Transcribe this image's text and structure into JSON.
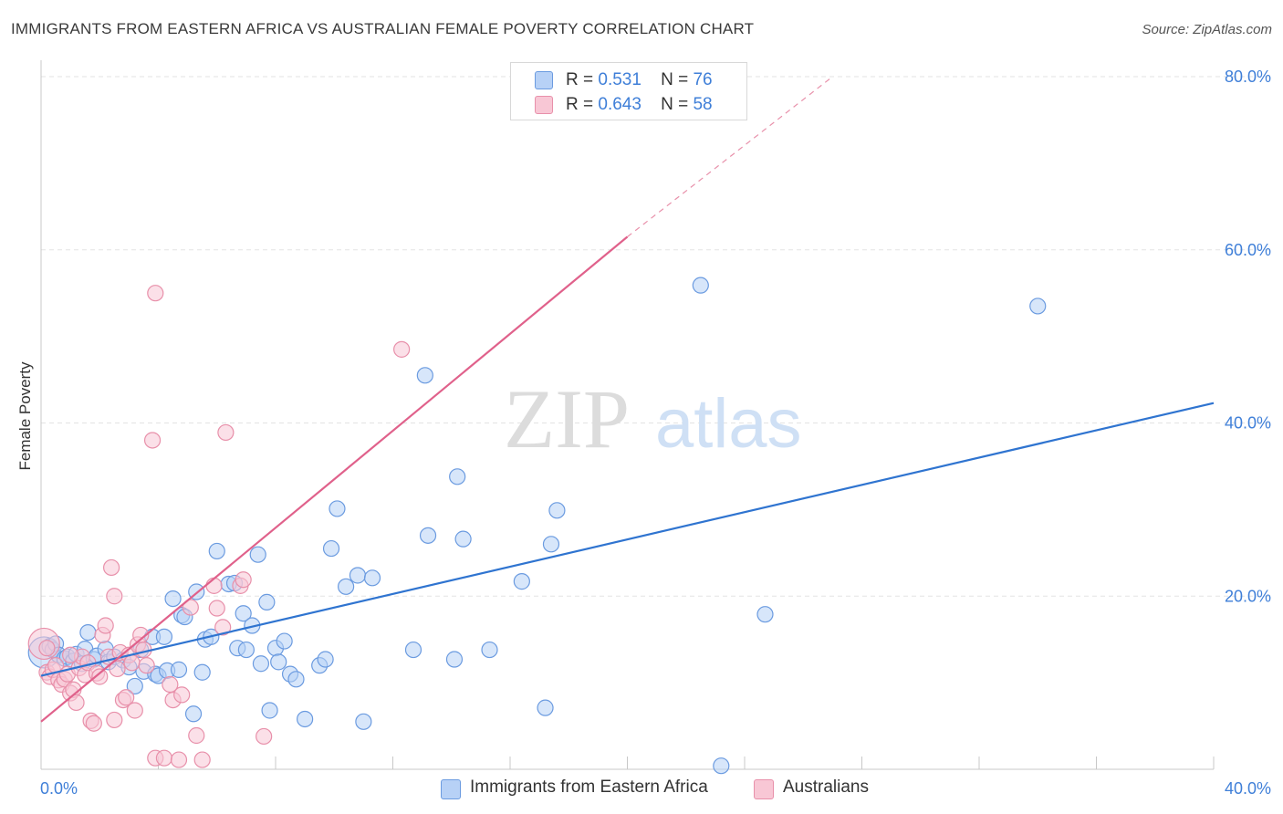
{
  "header": {
    "title": "IMMIGRANTS FROM EASTERN AFRICA VS AUSTRALIAN FEMALE POVERTY CORRELATION CHART",
    "source": "Source: ZipAtlas.com"
  },
  "watermark": {
    "zip": "ZIP",
    "atlas": "atlas"
  },
  "legend": {
    "rows": [
      {
        "r_label": "R =",
        "r_value": "0.531",
        "n_label": "N =",
        "n_value": "76"
      },
      {
        "r_label": "R =",
        "r_value": "0.643",
        "n_label": "N =",
        "n_value": "58"
      }
    ]
  },
  "bottom_legend": {
    "series1": "Immigrants from Eastern Africa",
    "series2": "Australians"
  },
  "colors": {
    "blue_fill": "#b7d1f6",
    "blue_stroke": "#6b9be0",
    "blue_line": "#2f74d0",
    "pink_fill": "#f8c7d5",
    "pink_stroke": "#e890aa",
    "pink_line": "#e0618b",
    "tick_text": "#3f7fd8",
    "grid": "#e3e3e3"
  },
  "chart_data": {
    "type": "scatter",
    "title": "IMMIGRANTS FROM EASTERN AFRICA VS AUSTRALIAN FEMALE POVERTY CORRELATION CHART",
    "xlabel": "",
    "ylabel": "Female Poverty",
    "xlim": [
      0,
      40
    ],
    "ylim": [
      0,
      80
    ],
    "x_tick_labels": [
      "0.0%",
      "40.0%"
    ],
    "y_tick_labels": [
      "20.0%",
      "40.0%",
      "60.0%",
      "80.0%"
    ],
    "y_ticks": [
      20,
      40,
      60,
      80
    ],
    "grid": true,
    "legend_position": "top-center",
    "series": [
      {
        "name": "Immigrants from Eastern Africa",
        "color": "#6b9be0",
        "r": "0.531",
        "n": "76",
        "trend": {
          "x": [
            0,
            40
          ],
          "y": [
            10.8,
            42.3
          ]
        },
        "points": [
          [
            0.1,
            13.5
          ],
          [
            0.3,
            14.2
          ],
          [
            0.4,
            13.8
          ],
          [
            0.5,
            14.5
          ],
          [
            0.6,
            13.2
          ],
          [
            0.8,
            12.8
          ],
          [
            0.9,
            13.0
          ],
          [
            1.1,
            12.5
          ],
          [
            1.2,
            13.3
          ],
          [
            1.4,
            12.2
          ],
          [
            1.5,
            13.9
          ],
          [
            1.6,
            15.8
          ],
          [
            1.8,
            12.7
          ],
          [
            1.9,
            13.1
          ],
          [
            2.2,
            13.9
          ],
          [
            2.3,
            12.4
          ],
          [
            2.5,
            13.0
          ],
          [
            2.8,
            12.6
          ],
          [
            3.0,
            11.8
          ],
          [
            3.2,
            9.6
          ],
          [
            3.4,
            13.8
          ],
          [
            3.5,
            11.3
          ],
          [
            3.8,
            15.3
          ],
          [
            3.9,
            11.0
          ],
          [
            4.0,
            10.8
          ],
          [
            4.2,
            15.3
          ],
          [
            4.3,
            11.4
          ],
          [
            4.5,
            19.7
          ],
          [
            4.7,
            11.5
          ],
          [
            4.8,
            17.8
          ],
          [
            4.9,
            17.6
          ],
          [
            5.2,
            6.4
          ],
          [
            5.3,
            20.5
          ],
          [
            5.5,
            11.2
          ],
          [
            5.6,
            15.0
          ],
          [
            5.8,
            15.3
          ],
          [
            6.0,
            25.2
          ],
          [
            6.4,
            21.4
          ],
          [
            6.6,
            21.5
          ],
          [
            6.7,
            14.0
          ],
          [
            6.9,
            18.0
          ],
          [
            7.0,
            13.8
          ],
          [
            7.2,
            16.6
          ],
          [
            7.4,
            24.8
          ],
          [
            7.5,
            12.2
          ],
          [
            7.7,
            19.3
          ],
          [
            7.8,
            6.8
          ],
          [
            8.0,
            14.0
          ],
          [
            8.1,
            12.4
          ],
          [
            8.3,
            14.8
          ],
          [
            8.5,
            11.0
          ],
          [
            8.7,
            10.4
          ],
          [
            9.0,
            5.8
          ],
          [
            9.5,
            12.0
          ],
          [
            9.7,
            12.7
          ],
          [
            9.9,
            25.5
          ],
          [
            10.1,
            30.1
          ],
          [
            10.4,
            21.1
          ],
          [
            10.8,
            22.4
          ],
          [
            11.0,
            5.5
          ],
          [
            11.3,
            22.1
          ],
          [
            12.7,
            13.8
          ],
          [
            13.1,
            45.5
          ],
          [
            13.2,
            27.0
          ],
          [
            14.1,
            12.7
          ],
          [
            14.2,
            33.8
          ],
          [
            14.4,
            26.6
          ],
          [
            15.3,
            13.8
          ],
          [
            16.4,
            21.7
          ],
          [
            17.2,
            7.1
          ],
          [
            17.4,
            26.0
          ],
          [
            17.6,
            29.9
          ],
          [
            22.5,
            55.9
          ],
          [
            23.2,
            0.4
          ],
          [
            24.7,
            17.9
          ],
          [
            34.0,
            53.5
          ]
        ]
      },
      {
        "name": "Australians",
        "color": "#e890aa",
        "r": "0.643",
        "n": "58",
        "trend": {
          "x": [
            0,
            20
          ],
          "y": [
            5.5,
            61.5
          ]
        },
        "trend_dashed": {
          "x": [
            20,
            27
          ],
          "y": [
            61.5,
            80.0
          ]
        },
        "points": [
          [
            0.1,
            14.5
          ],
          [
            0.2,
            11.2
          ],
          [
            0.3,
            10.7
          ],
          [
            0.4,
            11.5
          ],
          [
            0.5,
            12.0
          ],
          [
            0.6,
            10.3
          ],
          [
            0.7,
            9.8
          ],
          [
            0.8,
            10.4
          ],
          [
            0.9,
            11.0
          ],
          [
            1.0,
            8.8
          ],
          [
            1.1,
            9.2
          ],
          [
            1.2,
            7.7
          ],
          [
            1.3,
            11.7
          ],
          [
            1.4,
            13.0
          ],
          [
            1.5,
            10.9
          ],
          [
            1.6,
            12.3
          ],
          [
            1.7,
            5.6
          ],
          [
            1.8,
            5.3
          ],
          [
            1.9,
            11.1
          ],
          [
            2.0,
            10.7
          ],
          [
            2.1,
            15.5
          ],
          [
            2.2,
            16.6
          ],
          [
            2.3,
            13.0
          ],
          [
            2.4,
            23.3
          ],
          [
            2.5,
            5.7
          ],
          [
            2.5,
            20.0
          ],
          [
            2.6,
            11.6
          ],
          [
            2.7,
            13.5
          ],
          [
            2.8,
            8.0
          ],
          [
            2.9,
            8.3
          ],
          [
            3.0,
            13.2
          ],
          [
            3.1,
            12.3
          ],
          [
            3.2,
            6.8
          ],
          [
            3.3,
            14.4
          ],
          [
            3.4,
            15.5
          ],
          [
            3.5,
            13.8
          ],
          [
            3.6,
            12.0
          ],
          [
            3.8,
            38.0
          ],
          [
            3.9,
            1.3
          ],
          [
            3.9,
            55.0
          ],
          [
            4.2,
            1.3
          ],
          [
            4.4,
            9.8
          ],
          [
            4.5,
            8.0
          ],
          [
            4.7,
            1.1
          ],
          [
            4.8,
            8.6
          ],
          [
            5.1,
            18.7
          ],
          [
            5.3,
            3.9
          ],
          [
            5.5,
            1.1
          ],
          [
            5.9,
            21.2
          ],
          [
            6.0,
            18.6
          ],
          [
            6.2,
            16.4
          ],
          [
            6.3,
            38.9
          ],
          [
            6.8,
            21.2
          ],
          [
            6.9,
            21.9
          ],
          [
            7.6,
            3.8
          ],
          [
            12.3,
            48.5
          ],
          [
            0.2,
            14.0
          ],
          [
            1.0,
            13.2
          ]
        ]
      }
    ]
  }
}
